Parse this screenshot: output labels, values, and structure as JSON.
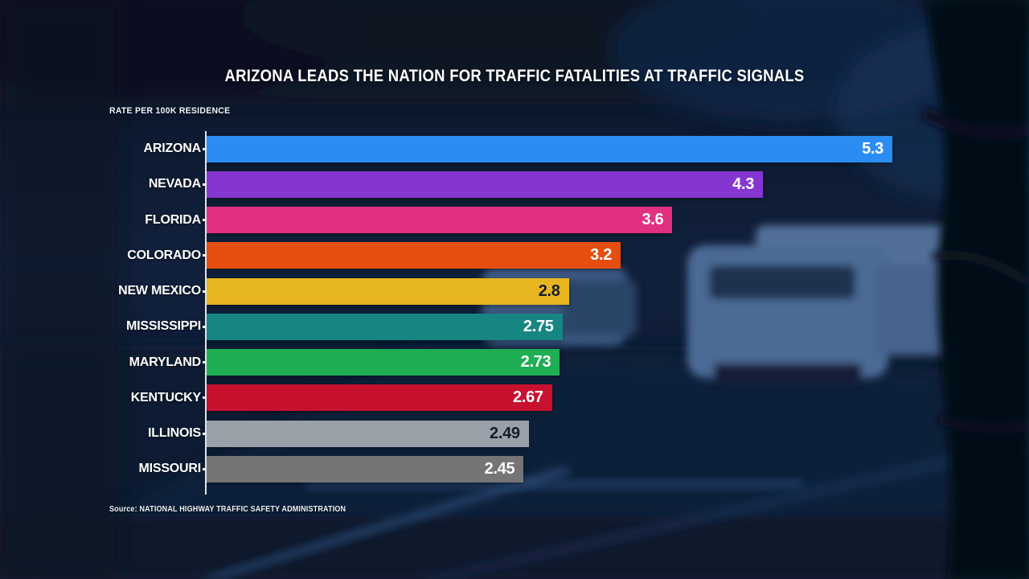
{
  "title": "ARIZONA LEADS THE NATION FOR TRAFFIC FATALITIES AT TRAFFIC SIGNALS",
  "subtitle": "RATE PER 100K RESIDENCE",
  "source": "Source: NATIONAL HIGHWAY TRAFFIC SAFETY ADMINISTRATION",
  "colors": {
    "background_navy": "#0d1830",
    "text_white": "#ffffff",
    "axis": "#f0f4f9"
  },
  "chart_data": {
    "type": "bar",
    "orientation": "horizontal",
    "title": "ARIZONA LEADS THE NATION FOR TRAFFIC FATALITIES AT TRAFFIC SIGNALS",
    "xlabel": "",
    "ylabel": "RATE PER 100K RESIDENCE",
    "xlim": [
      0,
      5.3
    ],
    "grid": false,
    "legend": false,
    "categories": [
      "ARIZONA",
      "NEVADA",
      "FLORIDA",
      "COLORADO",
      "NEW MEXICO",
      "MISSISSIPPI",
      "MARYLAND",
      "KENTUCKY",
      "ILLINOIS",
      "MISSOURI"
    ],
    "values": [
      5.3,
      4.3,
      3.6,
      3.2,
      2.8,
      2.75,
      2.73,
      2.67,
      2.49,
      2.45
    ],
    "value_labels": [
      "5.3",
      "4.3",
      "3.6",
      "3.2",
      "2.8",
      "2.75",
      "2.73",
      "2.67",
      "2.49",
      "2.45"
    ],
    "bar_colors": [
      "#2b8df1",
      "#8636d0",
      "#e23081",
      "#e54e0f",
      "#e7b51f",
      "#178683",
      "#1fae53",
      "#c8102f",
      "#9aa0a8",
      "#757577"
    ],
    "value_text_colors": [
      "#ffffff",
      "#ffffff",
      "#ffffff",
      "#ffffff",
      "#141c2c",
      "#ffffff",
      "#ffffff",
      "#ffffff",
      "#141c2c",
      "#ffffff"
    ]
  }
}
